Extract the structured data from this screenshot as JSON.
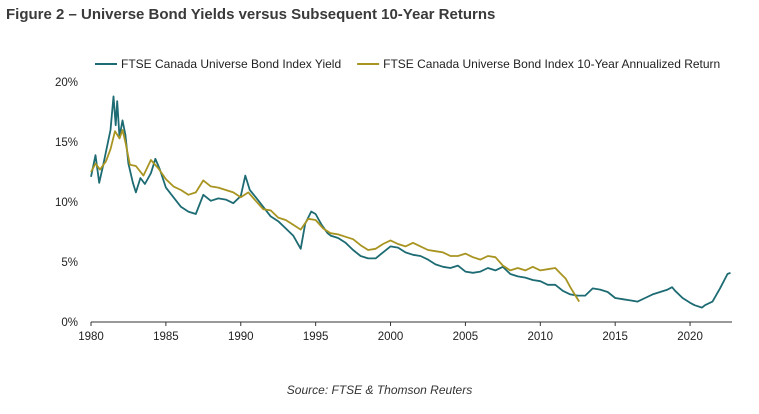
{
  "title": "Figure 2 – Universe Bond Yields versus Subsequent 10-Year Returns",
  "source": "Source: FTSE & Thomson Reuters",
  "chart_data": {
    "type": "line",
    "legend_position": "top",
    "grid": false,
    "xlim": [
      1980,
      2022.8
    ],
    "ylim": [
      0,
      20
    ],
    "x_ticks": [
      1980,
      1985,
      1990,
      1995,
      2000,
      2005,
      2010,
      2015,
      2020
    ],
    "y_ticks": [
      0,
      5,
      10,
      15,
      20
    ],
    "y_tick_labels": [
      "0%",
      "5%",
      "10%",
      "15%",
      "20%"
    ],
    "series": [
      {
        "name": "FTSE Canada Universe Bond Index Yield",
        "color": "#1d6b73",
        "points": [
          [
            1980.0,
            12.1
          ],
          [
            1980.3,
            13.9
          ],
          [
            1980.55,
            11.6
          ],
          [
            1980.8,
            13.0
          ],
          [
            1981.0,
            14.2
          ],
          [
            1981.3,
            16.0
          ],
          [
            1981.5,
            18.8
          ],
          [
            1981.65,
            16.4
          ],
          [
            1981.75,
            18.4
          ],
          [
            1981.9,
            15.4
          ],
          [
            1982.1,
            16.8
          ],
          [
            1982.3,
            15.6
          ],
          [
            1982.5,
            13.2
          ],
          [
            1982.8,
            11.6
          ],
          [
            1983.0,
            10.8
          ],
          [
            1983.3,
            12.0
          ],
          [
            1983.6,
            11.5
          ],
          [
            1984.0,
            12.4
          ],
          [
            1984.3,
            13.6
          ],
          [
            1984.6,
            12.7
          ],
          [
            1985.0,
            11.2
          ],
          [
            1985.5,
            10.4
          ],
          [
            1986.0,
            9.6
          ],
          [
            1986.5,
            9.2
          ],
          [
            1987.0,
            9.0
          ],
          [
            1987.5,
            10.6
          ],
          [
            1988.0,
            10.1
          ],
          [
            1988.5,
            10.3
          ],
          [
            1989.0,
            10.2
          ],
          [
            1989.5,
            9.9
          ],
          [
            1990.0,
            10.5
          ],
          [
            1990.3,
            12.2
          ],
          [
            1990.6,
            11.0
          ],
          [
            1991.0,
            10.4
          ],
          [
            1991.5,
            9.6
          ],
          [
            1992.0,
            8.8
          ],
          [
            1992.5,
            8.4
          ],
          [
            1993.0,
            7.8
          ],
          [
            1993.5,
            7.2
          ],
          [
            1994.0,
            6.1
          ],
          [
            1994.3,
            8.2
          ],
          [
            1994.7,
            9.2
          ],
          [
            1995.0,
            9.0
          ],
          [
            1995.4,
            8.1
          ],
          [
            1995.8,
            7.4
          ],
          [
            1996.0,
            7.2
          ],
          [
            1996.5,
            7.0
          ],
          [
            1997.0,
            6.6
          ],
          [
            1997.5,
            6.0
          ],
          [
            1998.0,
            5.5
          ],
          [
            1998.5,
            5.3
          ],
          [
            1999.0,
            5.3
          ],
          [
            1999.5,
            5.8
          ],
          [
            2000.0,
            6.3
          ],
          [
            2000.5,
            6.2
          ],
          [
            2001.0,
            5.8
          ],
          [
            2001.5,
            5.6
          ],
          [
            2002.0,
            5.5
          ],
          [
            2002.5,
            5.2
          ],
          [
            2003.0,
            4.8
          ],
          [
            2003.5,
            4.6
          ],
          [
            2004.0,
            4.5
          ],
          [
            2004.5,
            4.7
          ],
          [
            2005.0,
            4.2
          ],
          [
            2005.5,
            4.1
          ],
          [
            2006.0,
            4.2
          ],
          [
            2006.5,
            4.5
          ],
          [
            2007.0,
            4.3
          ],
          [
            2007.5,
            4.6
          ],
          [
            2008.0,
            4.0
          ],
          [
            2008.5,
            3.8
          ],
          [
            2009.0,
            3.7
          ],
          [
            2009.5,
            3.5
          ],
          [
            2010.0,
            3.4
          ],
          [
            2010.5,
            3.1
          ],
          [
            2011.0,
            3.1
          ],
          [
            2011.5,
            2.6
          ],
          [
            2012.0,
            2.3
          ],
          [
            2012.5,
            2.2
          ],
          [
            2013.0,
            2.2
          ],
          [
            2013.5,
            2.8
          ],
          [
            2014.0,
            2.7
          ],
          [
            2014.5,
            2.5
          ],
          [
            2015.0,
            2.0
          ],
          [
            2015.5,
            1.9
          ],
          [
            2016.0,
            1.8
          ],
          [
            2016.5,
            1.7
          ],
          [
            2017.0,
            2.0
          ],
          [
            2017.5,
            2.3
          ],
          [
            2018.0,
            2.5
          ],
          [
            2018.5,
            2.7
          ],
          [
            2018.8,
            2.9
          ],
          [
            2019.0,
            2.6
          ],
          [
            2019.5,
            2.0
          ],
          [
            2020.0,
            1.6
          ],
          [
            2020.3,
            1.4
          ],
          [
            2020.8,
            1.2
          ],
          [
            2021.0,
            1.4
          ],
          [
            2021.5,
            1.7
          ],
          [
            2022.0,
            2.8
          ],
          [
            2022.5,
            4.0
          ],
          [
            2022.7,
            4.1
          ]
        ]
      },
      {
        "name": "FTSE Canada Universe Bond Index 10-Year Annualized Return",
        "color": "#a89421",
        "points": [
          [
            1980.0,
            12.5
          ],
          [
            1980.3,
            13.2
          ],
          [
            1980.6,
            12.7
          ],
          [
            1981.0,
            13.4
          ],
          [
            1981.3,
            14.4
          ],
          [
            1981.6,
            15.9
          ],
          [
            1981.9,
            15.3
          ],
          [
            1982.1,
            16.0
          ],
          [
            1982.3,
            15.0
          ],
          [
            1982.6,
            13.1
          ],
          [
            1983.0,
            13.0
          ],
          [
            1983.5,
            12.2
          ],
          [
            1984.0,
            13.5
          ],
          [
            1984.5,
            12.8
          ],
          [
            1985.0,
            11.9
          ],
          [
            1985.5,
            11.3
          ],
          [
            1986.0,
            11.0
          ],
          [
            1986.5,
            10.6
          ],
          [
            1987.0,
            10.8
          ],
          [
            1987.5,
            11.8
          ],
          [
            1988.0,
            11.3
          ],
          [
            1988.5,
            11.2
          ],
          [
            1989.0,
            11.0
          ],
          [
            1989.5,
            10.8
          ],
          [
            1990.0,
            10.4
          ],
          [
            1990.5,
            10.8
          ],
          [
            1991.0,
            10.1
          ],
          [
            1991.5,
            9.4
          ],
          [
            1992.0,
            9.3
          ],
          [
            1992.5,
            8.7
          ],
          [
            1993.0,
            8.5
          ],
          [
            1993.5,
            8.1
          ],
          [
            1994.0,
            7.7
          ],
          [
            1994.5,
            8.6
          ],
          [
            1995.0,
            8.5
          ],
          [
            1995.5,
            7.8
          ],
          [
            1996.0,
            7.4
          ],
          [
            1996.5,
            7.3
          ],
          [
            1997.0,
            7.1
          ],
          [
            1997.5,
            6.9
          ],
          [
            1998.0,
            6.4
          ],
          [
            1998.5,
            6.0
          ],
          [
            1999.0,
            6.1
          ],
          [
            1999.5,
            6.5
          ],
          [
            2000.0,
            6.8
          ],
          [
            2000.5,
            6.5
          ],
          [
            2001.0,
            6.3
          ],
          [
            2001.5,
            6.6
          ],
          [
            2002.0,
            6.3
          ],
          [
            2002.5,
            6.0
          ],
          [
            2003.0,
            5.9
          ],
          [
            2003.5,
            5.8
          ],
          [
            2004.0,
            5.5
          ],
          [
            2004.5,
            5.5
          ],
          [
            2005.0,
            5.7
          ],
          [
            2005.5,
            5.4
          ],
          [
            2006.0,
            5.2
          ],
          [
            2006.5,
            5.5
          ],
          [
            2007.0,
            5.4
          ],
          [
            2007.5,
            4.7
          ],
          [
            2008.0,
            4.3
          ],
          [
            2008.5,
            4.5
          ],
          [
            2009.0,
            4.3
          ],
          [
            2009.5,
            4.6
          ],
          [
            2010.0,
            4.3
          ],
          [
            2010.5,
            4.4
          ],
          [
            2011.0,
            4.5
          ],
          [
            2011.3,
            4.1
          ],
          [
            2011.7,
            3.6
          ],
          [
            2012.0,
            2.9
          ],
          [
            2012.3,
            2.3
          ],
          [
            2012.6,
            1.7
          ]
        ]
      }
    ]
  }
}
